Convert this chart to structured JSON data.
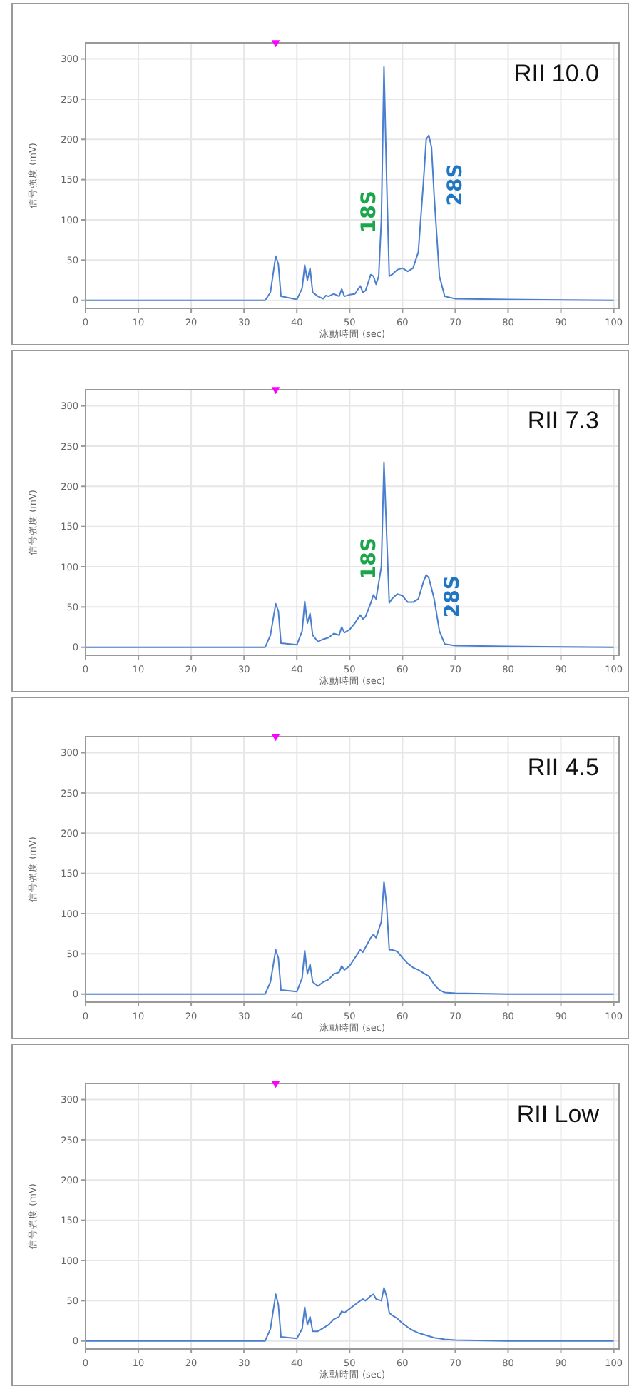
{
  "chart_data": [
    {
      "type": "line",
      "title": "RII 10.0",
      "xlabel": "泳動時間 (sec)",
      "ylabel": "信号強度 (mV)",
      "xlim": [
        0,
        101
      ],
      "ylim": [
        -10,
        320
      ],
      "xticks": [
        0,
        10,
        20,
        30,
        40,
        50,
        60,
        70,
        80,
        90,
        100
      ],
      "yticks": [
        0,
        50,
        100,
        150,
        200,
        250,
        300
      ],
      "grid": true,
      "annotations": [
        {
          "text": "18S",
          "x": 56,
          "y": 100
        },
        {
          "text": "28S",
          "x": 65,
          "y": 205
        }
      ],
      "series": [
        {
          "color": "#4a7fd0",
          "x": [
            0,
            34,
            35,
            36,
            36.5,
            37,
            40,
            41,
            41.5,
            42,
            42.5,
            43,
            44,
            45,
            45.5,
            46,
            47,
            48,
            48.5,
            49,
            50,
            51,
            52,
            52.5,
            53,
            54,
            54.5,
            55,
            55.5,
            56,
            56.5,
            57,
            57.5,
            58,
            59,
            60,
            61,
            62,
            63,
            64,
            64.5,
            65,
            65.5,
            66,
            67,
            68,
            70,
            80,
            100
          ],
          "values": [
            0,
            0,
            10,
            55,
            45,
            5,
            1,
            15,
            44,
            25,
            40,
            10,
            5,
            2,
            6,
            5,
            8,
            5,
            14,
            5,
            7,
            8,
            18,
            10,
            12,
            32,
            30,
            20,
            30,
            100,
            290,
            150,
            30,
            32,
            38,
            40,
            36,
            40,
            60,
            150,
            200,
            205,
            190,
            130,
            30,
            5,
            2,
            1,
            0
          ]
        },
        {
          "type": "scatter",
          "marker": "triangle",
          "color": "#ff00ff",
          "x": [
            36
          ],
          "values": [
            318
          ]
        }
      ]
    },
    {
      "type": "line",
      "title": "RII 7.3",
      "xlabel": "泳動時間 (sec)",
      "ylabel": "信号強度 (mV)",
      "xlim": [
        0,
        101
      ],
      "ylim": [
        -10,
        320
      ],
      "xticks": [
        0,
        10,
        20,
        30,
        40,
        50,
        60,
        70,
        80,
        90,
        100
      ],
      "yticks": [
        0,
        50,
        100,
        150,
        200,
        250,
        300
      ],
      "grid": true,
      "annotations": [
        {
          "text": "18S",
          "x": 56,
          "y": 100
        },
        {
          "text": "28S",
          "x": 64.5,
          "y": 90
        }
      ],
      "series": [
        {
          "color": "#4a7fd0",
          "x": [
            0,
            34,
            35,
            36,
            36.5,
            37,
            40,
            41,
            41.5,
            42,
            42.5,
            43,
            44,
            45,
            46,
            47,
            48,
            48.5,
            49,
            50,
            51,
            52,
            52.5,
            53,
            54,
            54.5,
            55,
            56,
            56.5,
            57,
            57.5,
            58,
            59,
            60,
            61,
            62,
            63,
            64,
            64.5,
            65,
            66,
            67,
            68,
            70,
            80,
            100
          ],
          "values": [
            0,
            0,
            15,
            54,
            45,
            5,
            3,
            20,
            57,
            30,
            42,
            15,
            7,
            10,
            12,
            17,
            15,
            25,
            18,
            22,
            30,
            40,
            35,
            38,
            55,
            65,
            60,
            100,
            230,
            140,
            55,
            60,
            66,
            64,
            56,
            56,
            60,
            82,
            90,
            86,
            60,
            20,
            4,
            2,
            1,
            0
          ]
        },
        {
          "type": "scatter",
          "marker": "triangle",
          "color": "#ff00ff",
          "x": [
            36
          ],
          "values": [
            318
          ]
        }
      ]
    },
    {
      "type": "line",
      "title": "RII 4.5",
      "xlabel": "泳動時間 (sec)",
      "ylabel": "信号強度 (mV)",
      "xlim": [
        0,
        101
      ],
      "ylim": [
        -10,
        320
      ],
      "xticks": [
        0,
        10,
        20,
        30,
        40,
        50,
        60,
        70,
        80,
        90,
        100
      ],
      "yticks": [
        0,
        50,
        100,
        150,
        200,
        250,
        300
      ],
      "grid": true,
      "series": [
        {
          "color": "#4a7fd0",
          "x": [
            0,
            34,
            35,
            36,
            36.5,
            37,
            40,
            41,
            41.5,
            42,
            42.5,
            43,
            44,
            45,
            46,
            47,
            48,
            48.5,
            49,
            50,
            51,
            52,
            52.5,
            53,
            54,
            54.5,
            55,
            56,
            56.5,
            57,
            57.5,
            58,
            59,
            60,
            61,
            62,
            63,
            64,
            65,
            66,
            67,
            68,
            70,
            80,
            100
          ],
          "values": [
            0,
            0,
            15,
            55,
            45,
            5,
            3,
            20,
            54,
            25,
            37,
            15,
            10,
            15,
            18,
            25,
            27,
            35,
            30,
            35,
            45,
            55,
            52,
            58,
            70,
            74,
            70,
            90,
            140,
            110,
            55,
            55,
            53,
            45,
            38,
            33,
            30,
            26,
            22,
            12,
            5,
            2,
            1,
            0,
            0
          ]
        },
        {
          "type": "scatter",
          "marker": "triangle",
          "color": "#ff00ff",
          "x": [
            36
          ],
          "values": [
            318
          ]
        }
      ]
    },
    {
      "type": "line",
      "title": "RII Low",
      "xlabel": "泳動時間 (sec)",
      "ylabel": "信号強度 (mV)",
      "xlim": [
        0,
        101
      ],
      "ylim": [
        -10,
        320
      ],
      "xticks": [
        0,
        10,
        20,
        30,
        40,
        50,
        60,
        70,
        80,
        90,
        100
      ],
      "yticks": [
        0,
        50,
        100,
        150,
        200,
        250,
        300
      ],
      "grid": true,
      "series": [
        {
          "color": "#4a7fd0",
          "x": [
            0,
            34,
            35,
            36,
            36.5,
            37,
            40,
            41,
            41.5,
            42,
            42.5,
            43,
            44,
            45,
            46,
            47,
            48,
            48.5,
            49,
            50,
            51,
            52,
            52.5,
            53,
            54,
            54.5,
            55,
            56,
            56.5,
            57,
            57.5,
            58,
            59,
            60,
            61,
            62,
            63,
            64,
            65,
            66,
            67,
            68,
            70,
            80,
            100
          ],
          "values": [
            0,
            0,
            15,
            58,
            45,
            5,
            3,
            15,
            42,
            20,
            30,
            12,
            12,
            16,
            20,
            27,
            30,
            37,
            35,
            40,
            45,
            50,
            52,
            50,
            56,
            58,
            52,
            50,
            66,
            55,
            35,
            32,
            28,
            22,
            17,
            13,
            10,
            8,
            6,
            4,
            3,
            2,
            1,
            0,
            0
          ]
        },
        {
          "type": "scatter",
          "marker": "triangle",
          "color": "#ff00ff",
          "x": [
            36
          ],
          "values": [
            318
          ]
        }
      ]
    }
  ]
}
